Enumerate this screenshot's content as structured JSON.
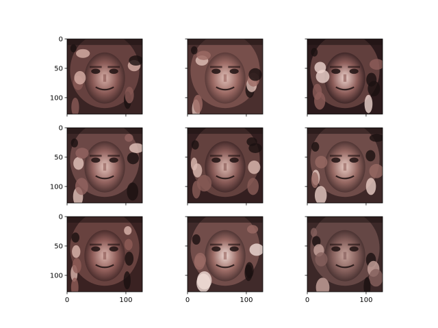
{
  "figure": {
    "background": "#ffffff"
  },
  "chart_data": {
    "type": "image-grid",
    "title": "",
    "grid": false,
    "rows": 3,
    "cols": 3,
    "shared_axes": {
      "x": "per-column",
      "y": "per-row"
    },
    "xlim": [
      0,
      128
    ],
    "ylim": [
      128,
      0
    ],
    "x_ticks": [
      0,
      100
    ],
    "y_ticks": [
      0,
      50,
      100
    ],
    "x_tick_labels": [
      "0",
      "100"
    ],
    "y_tick_labels": [
      "0",
      "50",
      "100"
    ],
    "x_tick_labels_shown_on_row": 3,
    "y_tick_labels_shown_on_col": 1,
    "panels": [
      {
        "row": 1,
        "col": 1,
        "content": "generated face image",
        "palette": {
          "bg": "#3a2424",
          "mid": "#8a5a56",
          "light": "#d8b0a8"
        }
      },
      {
        "row": 1,
        "col": 2,
        "content": "generated face image",
        "palette": {
          "bg": "#4a2f2e",
          "mid": "#9c6a64",
          "light": "#e0c0b8"
        }
      },
      {
        "row": 1,
        "col": 3,
        "content": "generated face image",
        "palette": {
          "bg": "#2c1a1c",
          "mid": "#8e5e5a",
          "light": "#eed4ce"
        }
      },
      {
        "row": 2,
        "col": 1,
        "content": "generated face image",
        "palette": {
          "bg": "#3c2626",
          "mid": "#946460",
          "light": "#e4c4bc"
        }
      },
      {
        "row": 2,
        "col": 2,
        "content": "generated face image",
        "palette": {
          "bg": "#341f20",
          "mid": "#8a5c58",
          "light": "#dcbab2"
        }
      },
      {
        "row": 2,
        "col": 3,
        "content": "generated face image",
        "palette": {
          "bg": "#3e2828",
          "mid": "#986a64",
          "light": "#e8ccc4"
        }
      },
      {
        "row": 3,
        "col": 1,
        "content": "generated face image",
        "palette": {
          "bg": "#3a2222",
          "mid": "#8e5c58",
          "light": "#dcb6ae"
        }
      },
      {
        "row": 3,
        "col": 2,
        "content": "generated face image",
        "palette": {
          "bg": "#402a2a",
          "mid": "#9a6a64",
          "light": "#f0dcd6"
        }
      },
      {
        "row": 3,
        "col": 3,
        "content": "generated face image",
        "palette": {
          "bg": "#3c2828",
          "mid": "#86605c",
          "light": "#c8a49c"
        }
      }
    ]
  }
}
